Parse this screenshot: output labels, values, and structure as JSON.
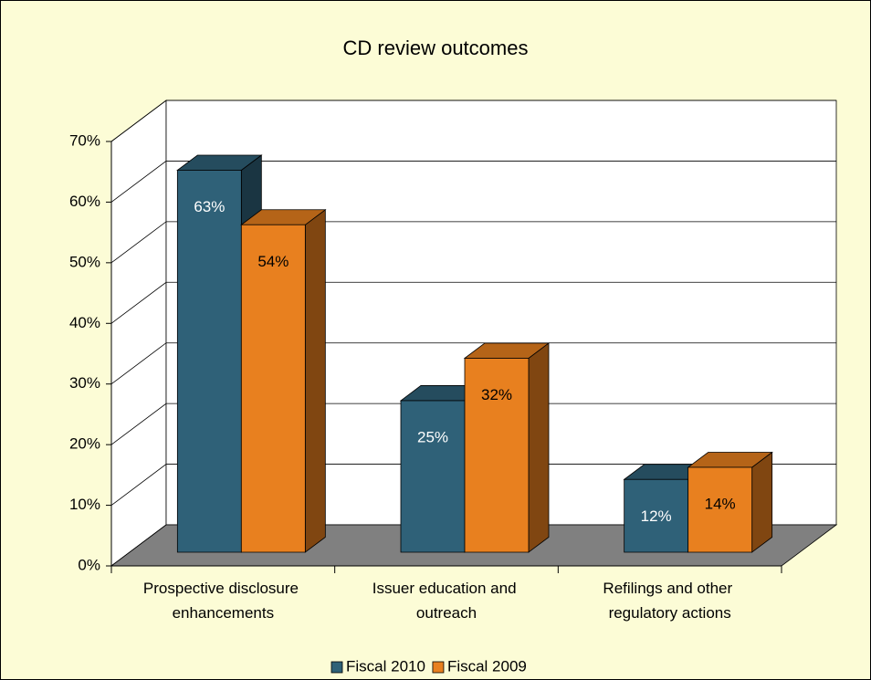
{
  "chart_data": {
    "type": "bar3d",
    "title": "CD review outcomes",
    "categories": [
      "Prospective disclosure enhancements",
      "Issuer education and outreach",
      "Refilings and other regulatory actions"
    ],
    "series": [
      {
        "name": "Fiscal 2010",
        "color": "#2f6178",
        "values": [
          63,
          25,
          12
        ],
        "value_labels": [
          "63%",
          "25%",
          "12%"
        ]
      },
      {
        "name": "Fiscal 2009",
        "color": "#e8801f",
        "values": [
          54,
          32,
          14
        ],
        "value_labels": [
          "54%",
          "32%",
          "14%"
        ]
      }
    ],
    "ylim": [
      0,
      70
    ],
    "yticks": [
      {
        "value": 0,
        "label": "0%"
      },
      {
        "value": 10,
        "label": "10%"
      },
      {
        "value": 20,
        "label": "20%"
      },
      {
        "value": 30,
        "label": "30%"
      },
      {
        "value": 40,
        "label": "40%"
      },
      {
        "value": 50,
        "label": "50%"
      },
      {
        "value": 60,
        "label": "60%"
      },
      {
        "value": 70,
        "label": "70%"
      }
    ],
    "grid": true,
    "legend": "bottom"
  }
}
